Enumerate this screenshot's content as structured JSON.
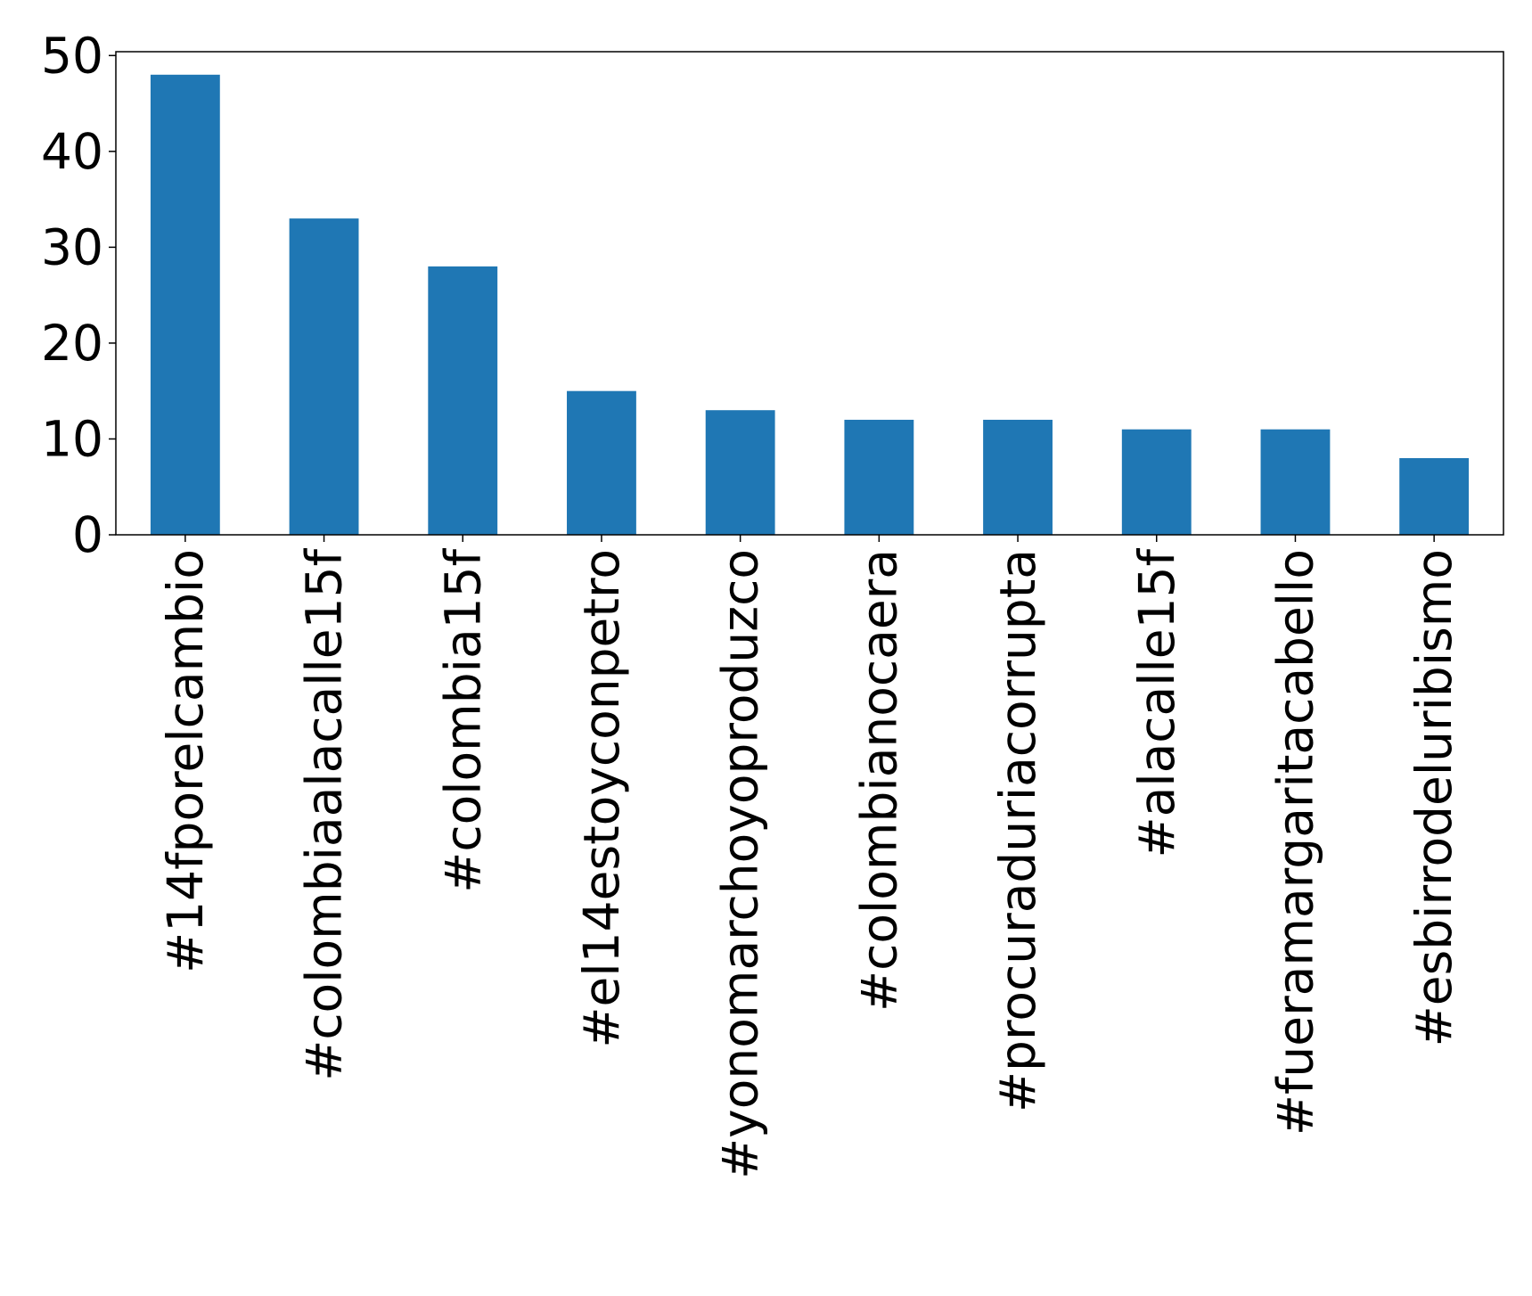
{
  "chart_data": {
    "type": "bar",
    "categories": [
      "#14fporelcambio",
      "#colombiaalacalle15f",
      "#colombia15f",
      "#el14estoyconpetro",
      "#yonomarchoyoproduzco",
      "#colombianocaera",
      "#procuraduriacorrupta",
      "#alacalle15f",
      "#fueramargaritacabello",
      "#esbirrodeluribismo"
    ],
    "values": [
      48,
      33,
      28,
      15,
      13,
      12,
      12,
      11,
      11,
      8
    ],
    "color": "#1f77b4",
    "ylim": [
      0,
      50.4
    ],
    "yticks": [
      0,
      10,
      20,
      30,
      40,
      50
    ],
    "grid": false
  }
}
